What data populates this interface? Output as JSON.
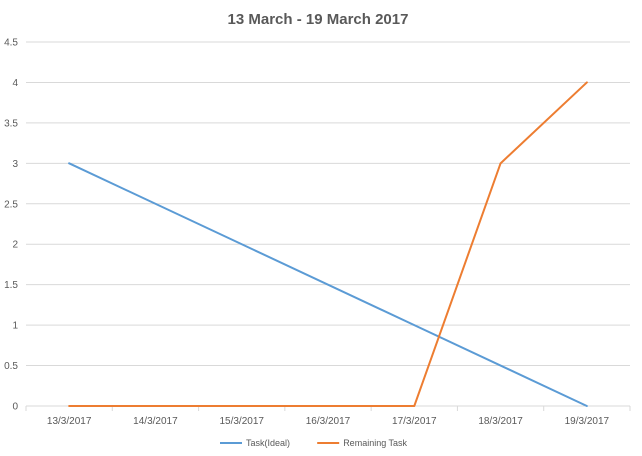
{
  "chart_data": {
    "type": "line",
    "title": "13 March - 19 March 2017",
    "xlabel": "",
    "ylabel": "",
    "categories": [
      "13/3/2017",
      "14/3/2017",
      "15/3/2017",
      "16/3/2017",
      "17/3/2017",
      "18/3/2017",
      "19/3/2017"
    ],
    "ylim": [
      0,
      4.5
    ],
    "yticks": [
      "0",
      "0.5",
      "1",
      "1.5",
      "2",
      "2.5",
      "3",
      "3.5",
      "4",
      "4.5"
    ],
    "grid": true,
    "legend_position": "bottom",
    "series": [
      {
        "name": "Task(Ideal)",
        "color": "#5B9BD5",
        "x": [
          "13/3/2017",
          "17/3/2017",
          "19/3/2017"
        ],
        "y": [
          3,
          1,
          0
        ]
      },
      {
        "name": "Remaining Task",
        "color": "#ED7D31",
        "x": [
          "13/3/2017",
          "17/3/2017",
          "18/3/2017",
          "19/3/2017"
        ],
        "y": [
          0,
          0,
          3,
          4
        ]
      }
    ]
  }
}
